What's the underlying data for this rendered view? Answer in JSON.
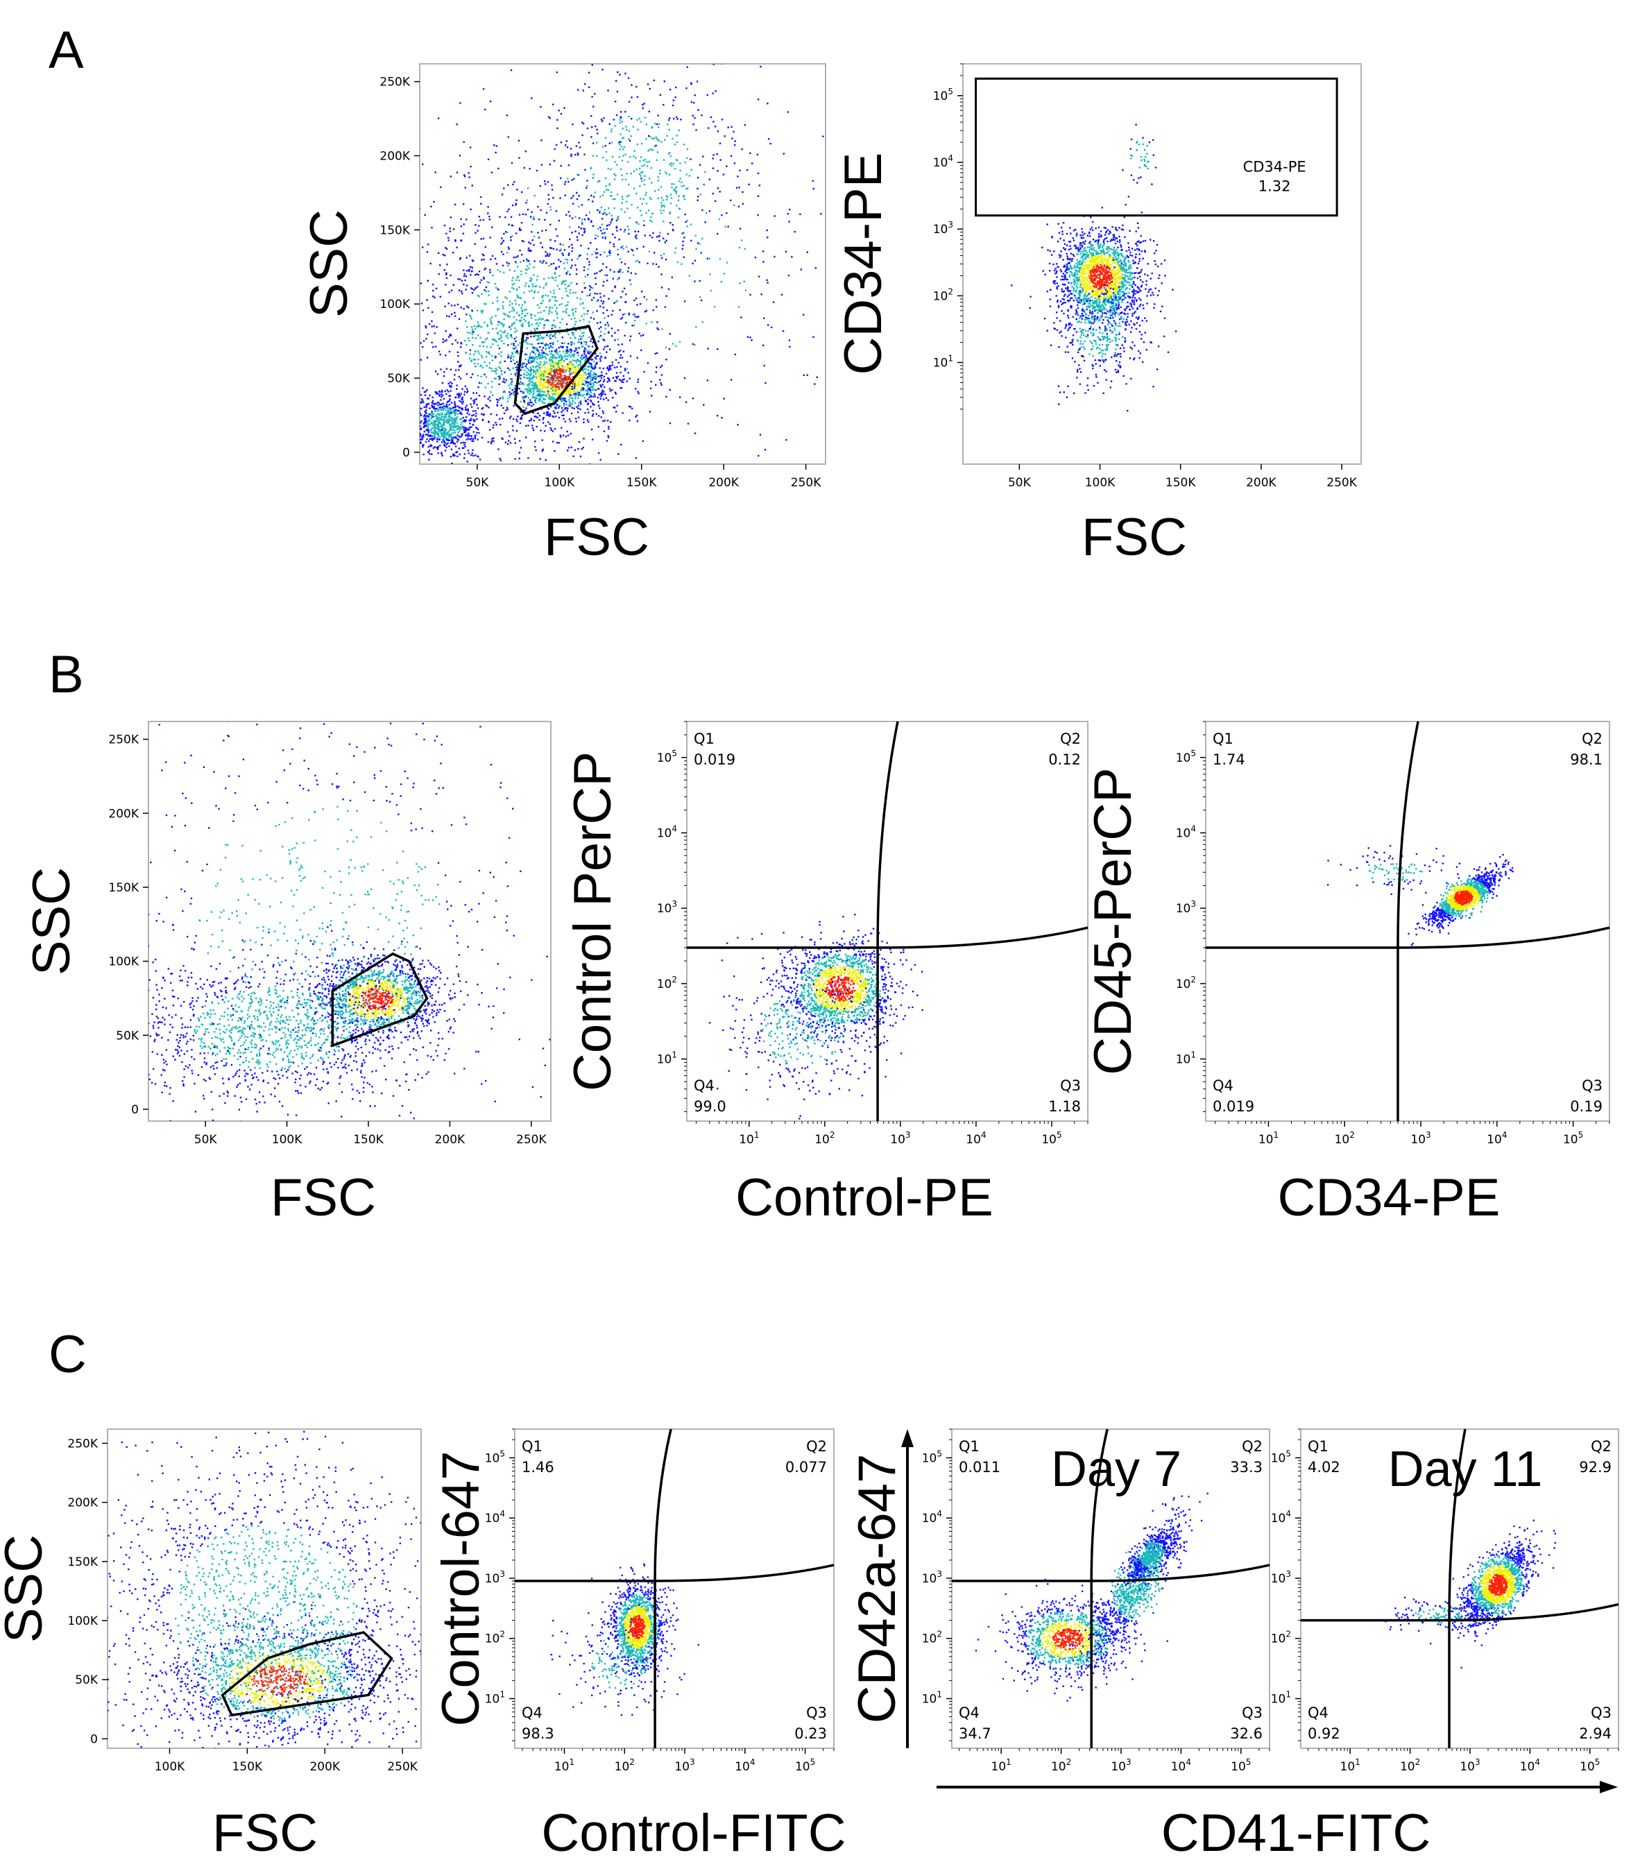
{
  "panels": {
    "A": "A",
    "B": "B",
    "C": "C"
  },
  "shared_labels": {
    "cd41_fitc": "CD41-FITC"
  },
  "colors": {
    "density_low": "#1010ff",
    "density_mid": "#18b8b8",
    "density_high": "#f0f000",
    "density_peak": "#ff2000",
    "gate": "#000000"
  },
  "chart_data": [
    {
      "id": "A1",
      "type": "scatter",
      "title": "",
      "xlabel": "FSC",
      "ylabel": "SSC",
      "x_scale": "linear",
      "y_scale": "linear",
      "xlim": [
        15000,
        262000
      ],
      "ylim": [
        -8000,
        262000
      ],
      "x_ticks": [
        {
          "v": 50000,
          "t": "50K"
        },
        {
          "v": 100000,
          "t": "100K"
        },
        {
          "v": 150000,
          "t": "150K"
        },
        {
          "v": 200000,
          "t": "200K"
        },
        {
          "v": 250000,
          "t": "250K"
        }
      ],
      "y_ticks": [
        {
          "v": 0,
          "t": "0"
        },
        {
          "v": 50000,
          "t": "50K"
        },
        {
          "v": 100000,
          "t": "100K"
        },
        {
          "v": 150000,
          "t": "150K"
        },
        {
          "v": 200000,
          "t": "200K"
        },
        {
          "v": 250000,
          "t": "250K"
        }
      ],
      "gate": {
        "type": "polygon",
        "points": [
          [
            78000,
            80000
          ],
          [
            103000,
            82000
          ],
          [
            118000,
            85000
          ],
          [
            123000,
            70000
          ],
          [
            97000,
            33000
          ],
          [
            79000,
            26000
          ],
          [
            73000,
            33000
          ]
        ]
      }
    },
    {
      "id": "A2",
      "type": "scatter",
      "title": "",
      "xlabel": "FSC",
      "ylabel": "CD34-PE",
      "x_scale": "linear",
      "y_scale": "log",
      "xlim": [
        15000,
        262000
      ],
      "ylim": [
        0.3,
        300000
      ],
      "x_ticks": [
        {
          "v": 50000,
          "t": "50K"
        },
        {
          "v": 100000,
          "t": "100K"
        },
        {
          "v": 150000,
          "t": "150K"
        },
        {
          "v": 200000,
          "t": "200K"
        },
        {
          "v": 250000,
          "t": "250K"
        }
      ],
      "y_ticks": [
        {
          "v": 10,
          "b": "10",
          "e": "1"
        },
        {
          "v": 100,
          "b": "10",
          "e": "2"
        },
        {
          "v": 1000,
          "b": "10",
          "e": "3"
        },
        {
          "v": 10000,
          "b": "10",
          "e": "4"
        },
        {
          "v": 100000,
          "b": "10",
          "e": "5"
        }
      ],
      "gate": {
        "type": "rect",
        "x": [
          23000,
          247000
        ],
        "y": [
          1600,
          180000
        ],
        "label": "CD34-PE",
        "value": "1.32"
      }
    },
    {
      "id": "B1",
      "type": "scatter",
      "title": "",
      "xlabel": "FSC",
      "ylabel": "SSC",
      "x_scale": "linear",
      "y_scale": "linear",
      "xlim": [
        15000,
        262000
      ],
      "ylim": [
        -8000,
        262000
      ],
      "x_ticks": [
        {
          "v": 50000,
          "t": "50K"
        },
        {
          "v": 100000,
          "t": "100K"
        },
        {
          "v": 150000,
          "t": "150K"
        },
        {
          "v": 200000,
          "t": "200K"
        },
        {
          "v": 250000,
          "t": "250K"
        }
      ],
      "y_ticks": [
        {
          "v": 0,
          "t": "0"
        },
        {
          "v": 50000,
          "t": "50K"
        },
        {
          "v": 100000,
          "t": "100K"
        },
        {
          "v": 150000,
          "t": "150K"
        },
        {
          "v": 200000,
          "t": "200K"
        },
        {
          "v": 250000,
          "t": "250K"
        }
      ],
      "gate": {
        "type": "polygon",
        "points": [
          [
            128000,
            80000
          ],
          [
            165000,
            105000
          ],
          [
            175000,
            100000
          ],
          [
            186000,
            75000
          ],
          [
            178000,
            63000
          ],
          [
            128000,
            43000
          ]
        ]
      }
    },
    {
      "id": "B2",
      "type": "scatter",
      "title": "",
      "xlabel": "Control-PE",
      "ylabel": "Control PerCP",
      "x_scale": "log",
      "y_scale": "log",
      "xlim": [
        1.5,
        300000
      ],
      "ylim": [
        1.5,
        300000
      ],
      "x_ticks": [
        {
          "v": 10,
          "b": "10",
          "e": "1"
        },
        {
          "v": 100,
          "b": "10",
          "e": "2"
        },
        {
          "v": 1000,
          "b": "10",
          "e": "3"
        },
        {
          "v": 10000,
          "b": "10",
          "e": "4"
        },
        {
          "v": 100000,
          "b": "10",
          "e": "5"
        }
      ],
      "y_ticks": [
        {
          "v": 10,
          "b": "10",
          "e": "1"
        },
        {
          "v": 100,
          "b": "10",
          "e": "2"
        },
        {
          "v": 1000,
          "b": "10",
          "e": "3"
        },
        {
          "v": 10000,
          "b": "10",
          "e": "4"
        },
        {
          "v": 100000,
          "b": "10",
          "e": "5"
        }
      ],
      "quadrant": {
        "x": 500,
        "y": 300
      },
      "quadrants": [
        {
          "name": "Q1",
          "value": "0.019"
        },
        {
          "name": "Q2",
          "value": "0.12"
        },
        {
          "name": "Q3",
          "value": "1.18"
        },
        {
          "name": "Q4",
          "value": "99.0"
        }
      ]
    },
    {
      "id": "B3",
      "type": "scatter",
      "title": "",
      "xlabel": "CD34-PE",
      "ylabel": "CD45-PerCP",
      "x_scale": "log",
      "y_scale": "log",
      "xlim": [
        1.5,
        300000
      ],
      "ylim": [
        1.5,
        300000
      ],
      "x_ticks": [
        {
          "v": 10,
          "b": "10",
          "e": "1"
        },
        {
          "v": 100,
          "b": "10",
          "e": "2"
        },
        {
          "v": 1000,
          "b": "10",
          "e": "3"
        },
        {
          "v": 10000,
          "b": "10",
          "e": "4"
        },
        {
          "v": 100000,
          "b": "10",
          "e": "5"
        }
      ],
      "y_ticks": [
        {
          "v": 10,
          "b": "10",
          "e": "1"
        },
        {
          "v": 100,
          "b": "10",
          "e": "2"
        },
        {
          "v": 1000,
          "b": "10",
          "e": "3"
        },
        {
          "v": 10000,
          "b": "10",
          "e": "4"
        },
        {
          "v": 100000,
          "b": "10",
          "e": "5"
        }
      ],
      "quadrant": {
        "x": 500,
        "y": 300
      },
      "quadrants": [
        {
          "name": "Q1",
          "value": "1.74"
        },
        {
          "name": "Q2",
          "value": "98.1"
        },
        {
          "name": "Q3",
          "value": "0.19"
        },
        {
          "name": "Q4",
          "value": "0.019"
        }
      ]
    },
    {
      "id": "C1",
      "type": "scatter",
      "title": "",
      "xlabel": "FSC",
      "ylabel": "SSC",
      "x_scale": "linear",
      "y_scale": "linear",
      "xlim": [
        60000,
        262000
      ],
      "ylim": [
        -8000,
        262000
      ],
      "x_ticks": [
        {
          "v": 100000,
          "t": "100K"
        },
        {
          "v": 150000,
          "t": "150K"
        },
        {
          "v": 200000,
          "t": "200K"
        },
        {
          "v": 250000,
          "t": "250K"
        }
      ],
      "y_ticks": [
        {
          "v": 0,
          "t": "0"
        },
        {
          "v": 50000,
          "t": "50K"
        },
        {
          "v": 100000,
          "t": "100K"
        },
        {
          "v": 150000,
          "t": "150K"
        },
        {
          "v": 200000,
          "t": "200K"
        },
        {
          "v": 250000,
          "t": "250K"
        }
      ],
      "gate": {
        "type": "polygon",
        "points": [
          [
            134000,
            37000
          ],
          [
            163000,
            68000
          ],
          [
            190000,
            80000
          ],
          [
            225000,
            90000
          ],
          [
            243000,
            68000
          ],
          [
            228000,
            37000
          ],
          [
            140000,
            20000
          ]
        ]
      }
    },
    {
      "id": "C2",
      "type": "scatter",
      "title": "",
      "xlabel": "Control-FITC",
      "ylabel": "Control-647",
      "x_scale": "log",
      "y_scale": "log",
      "xlim": [
        1.5,
        300000
      ],
      "ylim": [
        1.5,
        300000
      ],
      "x_ticks": [
        {
          "v": 10,
          "b": "10",
          "e": "1"
        },
        {
          "v": 100,
          "b": "10",
          "e": "2"
        },
        {
          "v": 1000,
          "b": "10",
          "e": "3"
        },
        {
          "v": 10000,
          "b": "10",
          "e": "4"
        },
        {
          "v": 100000,
          "b": "10",
          "e": "5"
        }
      ],
      "y_ticks": [
        {
          "v": 10,
          "b": "10",
          "e": "1"
        },
        {
          "v": 100,
          "b": "10",
          "e": "2"
        },
        {
          "v": 1000,
          "b": "10",
          "e": "3"
        },
        {
          "v": 10000,
          "b": "10",
          "e": "4"
        },
        {
          "v": 100000,
          "b": "10",
          "e": "5"
        }
      ],
      "quadrant": {
        "x": 320,
        "y": 900
      },
      "quadrants": [
        {
          "name": "Q1",
          "value": "1.46"
        },
        {
          "name": "Q2",
          "value": "0.077"
        },
        {
          "name": "Q3",
          "value": "0.23"
        },
        {
          "name": "Q4",
          "value": "98.3"
        }
      ]
    },
    {
      "id": "C3",
      "type": "scatter",
      "title": "Day 7",
      "xlabel": "",
      "ylabel": "CD42a-647",
      "x_scale": "log",
      "y_scale": "log",
      "xlim": [
        1.5,
        300000
      ],
      "ylim": [
        1.5,
        300000
      ],
      "x_ticks": [
        {
          "v": 10,
          "b": "10",
          "e": "1"
        },
        {
          "v": 100,
          "b": "10",
          "e": "2"
        },
        {
          "v": 1000,
          "b": "10",
          "e": "3"
        },
        {
          "v": 10000,
          "b": "10",
          "e": "4"
        },
        {
          "v": 100000,
          "b": "10",
          "e": "5"
        }
      ],
      "y_ticks": [
        {
          "v": 10,
          "b": "10",
          "e": "1"
        },
        {
          "v": 100,
          "b": "10",
          "e": "2"
        },
        {
          "v": 1000,
          "b": "10",
          "e": "3"
        },
        {
          "v": 10000,
          "b": "10",
          "e": "4"
        },
        {
          "v": 100000,
          "b": "10",
          "e": "5"
        }
      ],
      "quadrant": {
        "x": 320,
        "y": 900
      },
      "quadrants": [
        {
          "name": "Q1",
          "value": "0.011"
        },
        {
          "name": "Q2",
          "value": "33.3"
        },
        {
          "name": "Q3",
          "value": "32.6"
        },
        {
          "name": "Q4",
          "value": "34.7"
        }
      ]
    },
    {
      "id": "C4",
      "type": "scatter",
      "title": "Day 11",
      "xlabel": "",
      "ylabel": "",
      "x_scale": "log",
      "y_scale": "log",
      "xlim": [
        1.5,
        300000
      ],
      "ylim": [
        1.5,
        300000
      ],
      "x_ticks": [
        {
          "v": 10,
          "b": "10",
          "e": "1"
        },
        {
          "v": 100,
          "b": "10",
          "e": "2"
        },
        {
          "v": 1000,
          "b": "10",
          "e": "3"
        },
        {
          "v": 10000,
          "b": "10",
          "e": "4"
        },
        {
          "v": 100000,
          "b": "10",
          "e": "5"
        }
      ],
      "y_ticks": [
        {
          "v": 10,
          "b": "10",
          "e": "1"
        },
        {
          "v": 100,
          "b": "10",
          "e": "2"
        },
        {
          "v": 1000,
          "b": "10",
          "e": "3"
        },
        {
          "v": 10000,
          "b": "10",
          "e": "4"
        },
        {
          "v": 100000,
          "b": "10",
          "e": "5"
        }
      ],
      "quadrant": {
        "x": 450,
        "y": 200
      },
      "quadrants": [
        {
          "name": "Q1",
          "value": "4.02"
        },
        {
          "name": "Q2",
          "value": "92.9"
        },
        {
          "name": "Q3",
          "value": "2.94"
        },
        {
          "name": "Q4",
          "value": "0.92"
        }
      ]
    }
  ]
}
